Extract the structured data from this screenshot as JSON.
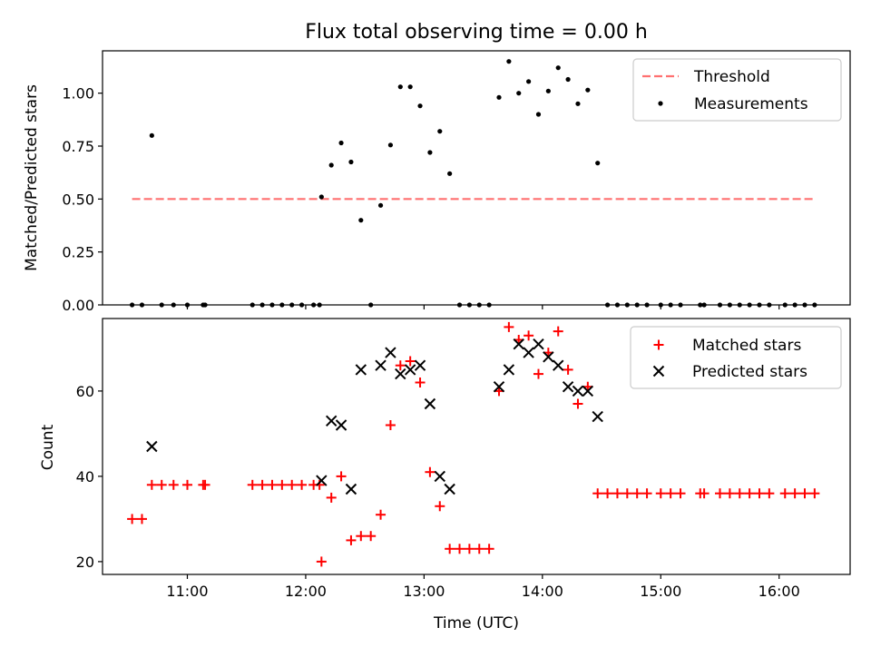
{
  "chart_data": [
    {
      "type": "scatter",
      "title": "Flux total observing time = 0.00 h",
      "xlabel": "",
      "ylabel": "Matched/Predicted stars",
      "ylim": [
        0,
        1.2
      ],
      "xlim": [
        "10:17",
        "16:36"
      ],
      "yticks": [
        "0.00",
        "0.25",
        "0.50",
        "0.75",
        "1.00"
      ],
      "legend_position": "top-right",
      "threshold": {
        "name": "Threshold",
        "x": [
          "10:32",
          "16:18"
        ],
        "y": 0.5,
        "color": "#ff7070"
      },
      "series": [
        {
          "name": "Measurements",
          "color": "#000000",
          "points": [
            [
              "10:32",
              0
            ],
            [
              "10:37",
              0
            ],
            [
              "10:42",
              0.8
            ],
            [
              "10:47",
              0
            ],
            [
              "10:53",
              0
            ],
            [
              "11:00",
              0
            ],
            [
              "11:08",
              0
            ],
            [
              "11:09",
              0
            ],
            [
              "11:33",
              0
            ],
            [
              "11:38",
              0
            ],
            [
              "11:43",
              0
            ],
            [
              "11:48",
              0
            ],
            [
              "11:53",
              0
            ],
            [
              "11:58",
              0
            ],
            [
              "12:04",
              0
            ],
            [
              "12:07",
              0
            ],
            [
              "12:08",
              0.51
            ],
            [
              "12:13",
              0.66
            ],
            [
              "12:18",
              0.765
            ],
            [
              "12:23",
              0.675
            ],
            [
              "12:28",
              0.4
            ],
            [
              "12:33",
              0
            ],
            [
              "12:38",
              0.47
            ],
            [
              "12:43",
              0.755
            ],
            [
              "12:48",
              1.03
            ],
            [
              "12:53",
              1.03
            ],
            [
              "12:58",
              0.94
            ],
            [
              "13:03",
              0.72
            ],
            [
              "13:08",
              0.82
            ],
            [
              "13:13",
              0.62
            ],
            [
              "13:18",
              0
            ],
            [
              "13:23",
              0
            ],
            [
              "13:28",
              0
            ],
            [
              "13:33",
              0
            ],
            [
              "13:38",
              0.98
            ],
            [
              "13:43",
              1.15
            ],
            [
              "13:48",
              1.0
            ],
            [
              "13:53",
              1.055
            ],
            [
              "13:58",
              0.9
            ],
            [
              "14:03",
              1.01
            ],
            [
              "14:08",
              1.12
            ],
            [
              "14:13",
              1.065
            ],
            [
              "14:18",
              0.95
            ],
            [
              "14:23",
              1.015
            ],
            [
              "14:28",
              0.67
            ],
            [
              "14:33",
              0
            ],
            [
              "14:38",
              0
            ],
            [
              "14:43",
              0
            ],
            [
              "14:48",
              0
            ],
            [
              "14:53",
              0
            ],
            [
              "15:00",
              0
            ],
            [
              "15:05",
              0
            ],
            [
              "15:10",
              0
            ],
            [
              "15:20",
              0
            ],
            [
              "15:22",
              0
            ],
            [
              "15:30",
              0
            ],
            [
              "15:35",
              0
            ],
            [
              "15:40",
              0
            ],
            [
              "15:45",
              0
            ],
            [
              "15:50",
              0
            ],
            [
              "15:55",
              0
            ],
            [
              "16:03",
              0
            ],
            [
              "16:08",
              0
            ],
            [
              "16:13",
              0
            ],
            [
              "16:18",
              0
            ]
          ]
        }
      ]
    },
    {
      "type": "scatter",
      "title": "",
      "xlabel": "Time (UTC)",
      "ylabel": "Count",
      "ylim": [
        17,
        77
      ],
      "xlim": [
        "10:17",
        "16:36"
      ],
      "xticks": [
        "11:00",
        "12:00",
        "13:00",
        "14:00",
        "15:00",
        "16:00"
      ],
      "yticks": [
        "20",
        "40",
        "60"
      ],
      "legend_position": "top-right",
      "series": [
        {
          "name": "Matched stars",
          "marker": "plus",
          "color": "#ff0000",
          "points": [
            [
              "10:32",
              30
            ],
            [
              "10:37",
              30
            ],
            [
              "10:42",
              38
            ],
            [
              "10:47",
              38
            ],
            [
              "10:53",
              38
            ],
            [
              "11:00",
              38
            ],
            [
              "11:08",
              38
            ],
            [
              "11:09",
              38
            ],
            [
              "11:33",
              38
            ],
            [
              "11:38",
              38
            ],
            [
              "11:43",
              38
            ],
            [
              "11:48",
              38
            ],
            [
              "11:53",
              38
            ],
            [
              "11:58",
              38
            ],
            [
              "12:04",
              38
            ],
            [
              "12:07",
              38
            ],
            [
              "12:08",
              20
            ],
            [
              "12:13",
              35
            ],
            [
              "12:18",
              40
            ],
            [
              "12:23",
              25
            ],
            [
              "12:28",
              26
            ],
            [
              "12:33",
              26
            ],
            [
              "12:38",
              31
            ],
            [
              "12:43",
              52
            ],
            [
              "12:48",
              66
            ],
            [
              "12:53",
              67
            ],
            [
              "12:58",
              62
            ],
            [
              "13:03",
              41
            ],
            [
              "13:08",
              33
            ],
            [
              "13:13",
              23
            ],
            [
              "13:18",
              23
            ],
            [
              "13:23",
              23
            ],
            [
              "13:28",
              23
            ],
            [
              "13:33",
              23
            ],
            [
              "13:38",
              60
            ],
            [
              "13:43",
              75
            ],
            [
              "13:48",
              72
            ],
            [
              "13:53",
              73
            ],
            [
              "13:58",
              64
            ],
            [
              "14:03",
              69
            ],
            [
              "14:08",
              74
            ],
            [
              "14:13",
              65
            ],
            [
              "14:18",
              57
            ],
            [
              "14:23",
              61
            ],
            [
              "14:28",
              36
            ],
            [
              "14:33",
              36
            ],
            [
              "14:38",
              36
            ],
            [
              "14:43",
              36
            ],
            [
              "14:48",
              36
            ],
            [
              "14:53",
              36
            ],
            [
              "15:00",
              36
            ],
            [
              "15:05",
              36
            ],
            [
              "15:10",
              36
            ],
            [
              "15:20",
              36
            ],
            [
              "15:22",
              36
            ],
            [
              "15:30",
              36
            ],
            [
              "15:35",
              36
            ],
            [
              "15:40",
              36
            ],
            [
              "15:45",
              36
            ],
            [
              "15:50",
              36
            ],
            [
              "15:55",
              36
            ],
            [
              "16:03",
              36
            ],
            [
              "16:08",
              36
            ],
            [
              "16:13",
              36
            ],
            [
              "16:18",
              36
            ]
          ]
        },
        {
          "name": "Predicted stars",
          "marker": "x",
          "color": "#000000",
          "points": [
            [
              "10:42",
              47
            ],
            [
              "12:08",
              39
            ],
            [
              "12:13",
              53
            ],
            [
              "12:18",
              52
            ],
            [
              "12:23",
              37
            ],
            [
              "12:28",
              65
            ],
            [
              "12:38",
              66
            ],
            [
              "12:43",
              69
            ],
            [
              "12:48",
              64
            ],
            [
              "12:53",
              65
            ],
            [
              "12:58",
              66
            ],
            [
              "13:03",
              57
            ],
            [
              "13:08",
              40
            ],
            [
              "13:13",
              37
            ],
            [
              "13:38",
              61
            ],
            [
              "13:43",
              65
            ],
            [
              "13:48",
              71
            ],
            [
              "13:53",
              69
            ],
            [
              "13:58",
              71
            ],
            [
              "14:03",
              68
            ],
            [
              "14:08",
              66
            ],
            [
              "14:13",
              61
            ],
            [
              "14:18",
              60
            ],
            [
              "14:23",
              60
            ],
            [
              "14:28",
              54
            ]
          ]
        }
      ]
    }
  ]
}
